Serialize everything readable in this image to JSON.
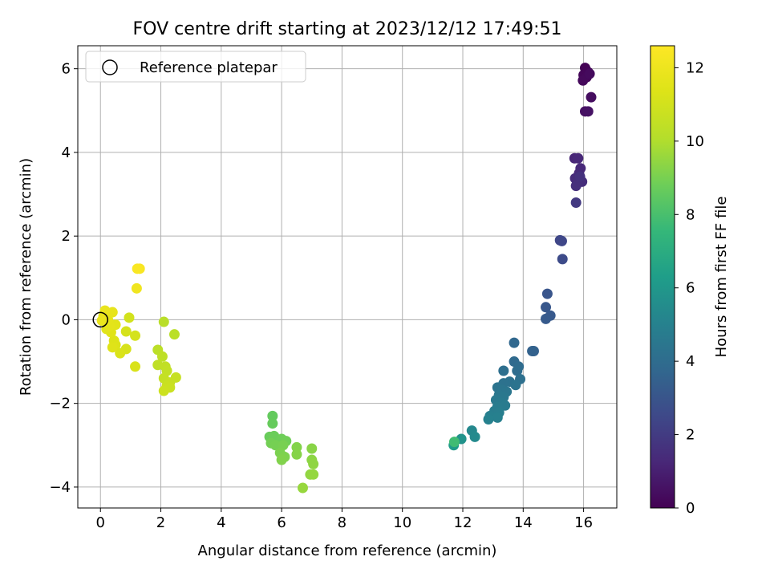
{
  "chart_data": {
    "type": "scatter",
    "title": "FOV centre drift starting at 2023/12/12 17:49:51",
    "xlabel": "Angular distance from reference (arcmin)",
    "ylabel": "Rotation from reference (arcmin)",
    "colorbar_label": "Hours from first FF file",
    "xlim": [
      -0.75,
      17.1
    ],
    "ylim": [
      -4.5,
      6.55
    ],
    "clim": [
      0,
      12.6
    ],
    "xticks": [
      0,
      2,
      4,
      6,
      8,
      10,
      12,
      14,
      16
    ],
    "yticks": [
      -4,
      -2,
      0,
      2,
      4,
      6
    ],
    "cticks": [
      0,
      2,
      4,
      6,
      8,
      10,
      12
    ],
    "grid": true,
    "colormap": "viridis",
    "legend": {
      "label": "Reference platepar",
      "location": "upper-left"
    },
    "reference_point": {
      "x": 0,
      "y": 0
    },
    "points": [
      {
        "x": 16.05,
        "y": 6.02,
        "h": 0.05
      },
      {
        "x": 16.15,
        "y": 5.92,
        "h": 0.1
      },
      {
        "x": 16.0,
        "y": 5.85,
        "h": 0.15
      },
      {
        "x": 16.1,
        "y": 5.8,
        "h": 0.2
      },
      {
        "x": 15.98,
        "y": 5.72,
        "h": 0.25
      },
      {
        "x": 16.2,
        "y": 5.88,
        "h": 0.3
      },
      {
        "x": 16.25,
        "y": 5.32,
        "h": 0.4
      },
      {
        "x": 16.05,
        "y": 4.98,
        "h": 0.5
      },
      {
        "x": 16.15,
        "y": 4.98,
        "h": 0.55
      },
      {
        "x": 15.7,
        "y": 3.86,
        "h": 1.2
      },
      {
        "x": 15.82,
        "y": 3.86,
        "h": 1.25
      },
      {
        "x": 15.9,
        "y": 3.62,
        "h": 1.3
      },
      {
        "x": 15.85,
        "y": 3.5,
        "h": 1.35
      },
      {
        "x": 15.72,
        "y": 3.38,
        "h": 1.4
      },
      {
        "x": 15.95,
        "y": 3.3,
        "h": 1.45
      },
      {
        "x": 15.8,
        "y": 3.28,
        "h": 1.5
      },
      {
        "x": 15.75,
        "y": 3.2,
        "h": 1.55
      },
      {
        "x": 15.88,
        "y": 3.42,
        "h": 1.6
      },
      {
        "x": 15.75,
        "y": 2.8,
        "h": 1.9
      },
      {
        "x": 15.22,
        "y": 1.9,
        "h": 2.4
      },
      {
        "x": 15.28,
        "y": 1.88,
        "h": 2.45
      },
      {
        "x": 15.3,
        "y": 1.45,
        "h": 2.6
      },
      {
        "x": 14.8,
        "y": 0.62,
        "h": 3.0
      },
      {
        "x": 14.75,
        "y": 0.3,
        "h": 3.1
      },
      {
        "x": 14.9,
        "y": 0.1,
        "h": 3.15
      },
      {
        "x": 14.75,
        "y": 0.02,
        "h": 3.2
      },
      {
        "x": 14.35,
        "y": -0.75,
        "h": 3.5
      },
      {
        "x": 14.3,
        "y": -0.75,
        "h": 3.55
      },
      {
        "x": 13.7,
        "y": -0.55,
        "h": 3.8
      },
      {
        "x": 13.7,
        "y": -1.0,
        "h": 3.9
      },
      {
        "x": 13.85,
        "y": -1.12,
        "h": 3.95
      },
      {
        "x": 13.8,
        "y": -1.22,
        "h": 4.0
      },
      {
        "x": 13.35,
        "y": -1.22,
        "h": 4.1
      },
      {
        "x": 13.9,
        "y": -1.42,
        "h": 4.15
      },
      {
        "x": 13.55,
        "y": -1.48,
        "h": 4.2
      },
      {
        "x": 13.35,
        "y": -1.52,
        "h": 4.25
      },
      {
        "x": 13.75,
        "y": -1.56,
        "h": 4.3
      },
      {
        "x": 13.15,
        "y": -1.62,
        "h": 4.35
      },
      {
        "x": 13.3,
        "y": -1.68,
        "h": 4.4
      },
      {
        "x": 13.45,
        "y": -1.72,
        "h": 4.45
      },
      {
        "x": 13.2,
        "y": -1.8,
        "h": 4.5
      },
      {
        "x": 13.35,
        "y": -1.85,
        "h": 4.55
      },
      {
        "x": 13.1,
        "y": -1.92,
        "h": 4.6
      },
      {
        "x": 13.25,
        "y": -1.98,
        "h": 4.65
      },
      {
        "x": 13.4,
        "y": -2.05,
        "h": 4.7
      },
      {
        "x": 13.15,
        "y": -2.08,
        "h": 4.75
      },
      {
        "x": 13.05,
        "y": -2.18,
        "h": 4.8
      },
      {
        "x": 13.2,
        "y": -2.22,
        "h": 4.85
      },
      {
        "x": 12.9,
        "y": -2.3,
        "h": 4.9
      },
      {
        "x": 13.15,
        "y": -2.34,
        "h": 4.95
      },
      {
        "x": 12.85,
        "y": -2.38,
        "h": 5.0
      },
      {
        "x": 12.3,
        "y": -2.65,
        "h": 5.3
      },
      {
        "x": 12.4,
        "y": -2.8,
        "h": 5.4
      },
      {
        "x": 11.95,
        "y": -2.85,
        "h": 5.8
      },
      {
        "x": 11.7,
        "y": -3.0,
        "h": 6.2
      },
      {
        "x": 11.72,
        "y": -2.92,
        "h": 7.8
      },
      {
        "x": 5.7,
        "y": -2.3,
        "h": 8.6
      },
      {
        "x": 5.7,
        "y": -2.48,
        "h": 8.65
      },
      {
        "x": 5.6,
        "y": -2.8,
        "h": 8.7
      },
      {
        "x": 5.75,
        "y": -2.78,
        "h": 8.75
      },
      {
        "x": 6.0,
        "y": -2.85,
        "h": 8.8
      },
      {
        "x": 6.15,
        "y": -2.9,
        "h": 8.85
      },
      {
        "x": 5.65,
        "y": -2.95,
        "h": 8.9
      },
      {
        "x": 5.8,
        "y": -3.0,
        "h": 8.95
      },
      {
        "x": 6.05,
        "y": -3.0,
        "h": 9.0
      },
      {
        "x": 5.95,
        "y": -3.18,
        "h": 9.05
      },
      {
        "x": 6.1,
        "y": -3.28,
        "h": 9.1
      },
      {
        "x": 6.0,
        "y": -3.35,
        "h": 9.15
      },
      {
        "x": 6.5,
        "y": -3.05,
        "h": 9.2
      },
      {
        "x": 6.5,
        "y": -3.22,
        "h": 9.25
      },
      {
        "x": 7.0,
        "y": -3.08,
        "h": 9.3
      },
      {
        "x": 7.0,
        "y": -3.35,
        "h": 9.35
      },
      {
        "x": 7.05,
        "y": -3.45,
        "h": 9.4
      },
      {
        "x": 6.95,
        "y": -3.7,
        "h": 9.45
      },
      {
        "x": 7.05,
        "y": -3.7,
        "h": 9.5
      },
      {
        "x": 6.7,
        "y": -4.02,
        "h": 9.55
      },
      {
        "x": 2.1,
        "y": -0.05,
        "h": 10.2
      },
      {
        "x": 2.45,
        "y": -0.35,
        "h": 10.25
      },
      {
        "x": 1.9,
        "y": -0.72,
        "h": 10.3
      },
      {
        "x": 2.05,
        "y": -0.88,
        "h": 10.35
      },
      {
        "x": 1.9,
        "y": -1.08,
        "h": 10.4
      },
      {
        "x": 2.15,
        "y": -1.12,
        "h": 10.45
      },
      {
        "x": 2.2,
        "y": -1.22,
        "h": 10.5
      },
      {
        "x": 2.1,
        "y": -1.4,
        "h": 10.55
      },
      {
        "x": 2.5,
        "y": -1.38,
        "h": 10.6
      },
      {
        "x": 2.3,
        "y": -1.5,
        "h": 10.65
      },
      {
        "x": 2.2,
        "y": -1.58,
        "h": 10.7
      },
      {
        "x": 2.3,
        "y": -1.62,
        "h": 10.75
      },
      {
        "x": 2.1,
        "y": -1.7,
        "h": 10.8
      },
      {
        "x": 0.95,
        "y": 0.05,
        "h": 11.0
      },
      {
        "x": 1.15,
        "y": -0.38,
        "h": 11.05
      },
      {
        "x": 0.85,
        "y": -0.28,
        "h": 11.1
      },
      {
        "x": 0.85,
        "y": -0.7,
        "h": 11.15
      },
      {
        "x": 1.15,
        "y": -1.12,
        "h": 11.2
      },
      {
        "x": 0.65,
        "y": -0.8,
        "h": 11.25
      },
      {
        "x": 0.5,
        "y": -0.6,
        "h": 11.3
      },
      {
        "x": 0.45,
        "y": -0.5,
        "h": 11.35
      },
      {
        "x": 0.4,
        "y": -0.66,
        "h": 11.4
      },
      {
        "x": 0.35,
        "y": -0.3,
        "h": 11.45
      },
      {
        "x": 0.2,
        "y": -0.22,
        "h": 11.5
      },
      {
        "x": 0.5,
        "y": -0.12,
        "h": 11.55
      },
      {
        "x": 0.3,
        "y": -0.15,
        "h": 11.6
      },
      {
        "x": 0.25,
        "y": 0.0,
        "h": 11.65
      },
      {
        "x": 0.1,
        "y": 0.08,
        "h": 11.7
      },
      {
        "x": 0.4,
        "y": 0.18,
        "h": 11.75
      },
      {
        "x": 0.15,
        "y": 0.22,
        "h": 11.8
      },
      {
        "x": 0.05,
        "y": -0.02,
        "h": 11.85
      },
      {
        "x": 1.2,
        "y": 0.75,
        "h": 12.1
      },
      {
        "x": 1.3,
        "y": 1.22,
        "h": 12.4
      },
      {
        "x": 1.22,
        "y": 1.22,
        "h": 12.45
      }
    ]
  }
}
